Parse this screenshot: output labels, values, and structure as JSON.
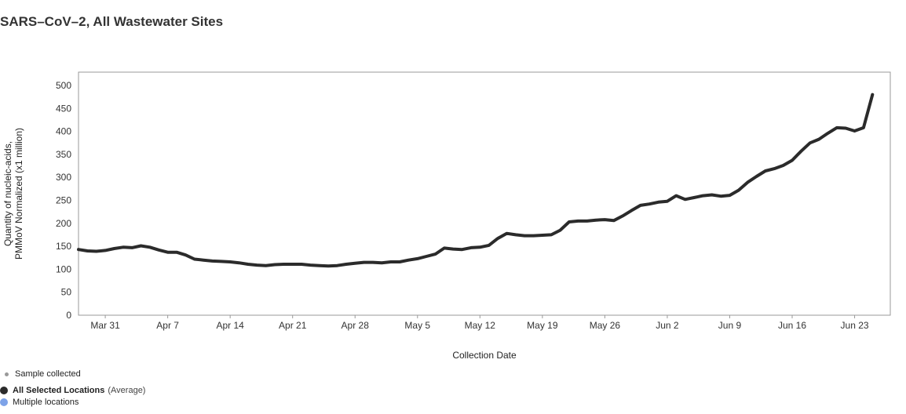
{
  "title": "SARS–CoV–2, All Wastewater Sites",
  "legend": {
    "sample": "Sample collected",
    "all_locations": "All Selected Locations",
    "average": "(Average)",
    "multiple": "Multiple locations"
  },
  "colors": {
    "line": "#2b2b2b",
    "sample_dot": "#999999",
    "all_dot": "#2b2b2b",
    "multiple_dot": "#7ea3e8",
    "frame": "#999999"
  },
  "chart_data": {
    "type": "line",
    "xlabel": "Collection Date",
    "ylabel_lines": [
      "Quantity of nucleic-acids,",
      "PMMoV Normalized (x1 million)"
    ],
    "ylim": [
      0,
      500
    ],
    "yticks": [
      0,
      50,
      100,
      150,
      200,
      250,
      300,
      350,
      400,
      450,
      500
    ],
    "xlim": [
      "2024-03-28",
      "2024-06-27"
    ],
    "xticks": [
      {
        "date": "2024-03-31",
        "label": "Mar 31"
      },
      {
        "date": "2024-04-07",
        "label": "Apr 7"
      },
      {
        "date": "2024-04-14",
        "label": "Apr 14"
      },
      {
        "date": "2024-04-21",
        "label": "Apr 21"
      },
      {
        "date": "2024-04-28",
        "label": "Apr 28"
      },
      {
        "date": "2024-05-05",
        "label": "May 5"
      },
      {
        "date": "2024-05-12",
        "label": "May 12"
      },
      {
        "date": "2024-05-19",
        "label": "May 19"
      },
      {
        "date": "2024-05-26",
        "label": "May 26"
      },
      {
        "date": "2024-06-02",
        "label": "Jun 2"
      },
      {
        "date": "2024-06-09",
        "label": "Jun 9"
      },
      {
        "date": "2024-06-16",
        "label": "Jun 16"
      },
      {
        "date": "2024-06-23",
        "label": "Jun 23"
      }
    ],
    "grid": false,
    "series": [
      {
        "color": "#2b2b2b",
        "points": [
          [
            "2024-03-28",
            143
          ],
          [
            "2024-03-29",
            140
          ],
          [
            "2024-03-30",
            139
          ],
          [
            "2024-03-31",
            141
          ],
          [
            "2024-04-01",
            145
          ],
          [
            "2024-04-02",
            148
          ],
          [
            "2024-04-03",
            147
          ],
          [
            "2024-04-04",
            151
          ],
          [
            "2024-04-05",
            148
          ],
          [
            "2024-04-06",
            142
          ],
          [
            "2024-04-07",
            137
          ],
          [
            "2024-04-08",
            137
          ],
          [
            "2024-04-09",
            131
          ],
          [
            "2024-04-10",
            122
          ],
          [
            "2024-04-11",
            120
          ],
          [
            "2024-04-12",
            118
          ],
          [
            "2024-04-13",
            117
          ],
          [
            "2024-04-14",
            116
          ],
          [
            "2024-04-15",
            114
          ],
          [
            "2024-04-16",
            111
          ],
          [
            "2024-04-17",
            109
          ],
          [
            "2024-04-18",
            108
          ],
          [
            "2024-04-19",
            110
          ],
          [
            "2024-04-20",
            111
          ],
          [
            "2024-04-21",
            111
          ],
          [
            "2024-04-22",
            111
          ],
          [
            "2024-04-23",
            109
          ],
          [
            "2024-04-24",
            108
          ],
          [
            "2024-04-25",
            107
          ],
          [
            "2024-04-26",
            108
          ],
          [
            "2024-04-27",
            111
          ],
          [
            "2024-04-28",
            113
          ],
          [
            "2024-04-29",
            115
          ],
          [
            "2024-04-30",
            115
          ],
          [
            "2024-05-01",
            114
          ],
          [
            "2024-05-02",
            116
          ],
          [
            "2024-05-03",
            116
          ],
          [
            "2024-05-04",
            120
          ],
          [
            "2024-05-05",
            123
          ],
          [
            "2024-05-06",
            128
          ],
          [
            "2024-05-07",
            133
          ],
          [
            "2024-05-08",
            146
          ],
          [
            "2024-05-09",
            144
          ],
          [
            "2024-05-10",
            143
          ],
          [
            "2024-05-11",
            147
          ],
          [
            "2024-05-12",
            148
          ],
          [
            "2024-05-13",
            152
          ],
          [
            "2024-05-14",
            167
          ],
          [
            "2024-05-15",
            178
          ],
          [
            "2024-05-16",
            175
          ],
          [
            "2024-05-17",
            173
          ],
          [
            "2024-05-18",
            173
          ],
          [
            "2024-05-19",
            174
          ],
          [
            "2024-05-20",
            175
          ],
          [
            "2024-05-21",
            185
          ],
          [
            "2024-05-22",
            203
          ],
          [
            "2024-05-23",
            205
          ],
          [
            "2024-05-24",
            205
          ],
          [
            "2024-05-25",
            207
          ],
          [
            "2024-05-26",
            208
          ],
          [
            "2024-05-27",
            206
          ],
          [
            "2024-05-28",
            216
          ],
          [
            "2024-05-29",
            228
          ],
          [
            "2024-05-30",
            239
          ],
          [
            "2024-05-31",
            242
          ],
          [
            "2024-06-01",
            246
          ],
          [
            "2024-06-02",
            248
          ],
          [
            "2024-06-03",
            260
          ],
          [
            "2024-06-04",
            252
          ],
          [
            "2024-06-05",
            256
          ],
          [
            "2024-06-06",
            260
          ],
          [
            "2024-06-07",
            262
          ],
          [
            "2024-06-08",
            259
          ],
          [
            "2024-06-09",
            261
          ],
          [
            "2024-06-10",
            272
          ],
          [
            "2024-06-11",
            289
          ],
          [
            "2024-06-12",
            302
          ],
          [
            "2024-06-13",
            314
          ],
          [
            "2024-06-14",
            319
          ],
          [
            "2024-06-15",
            326
          ],
          [
            "2024-06-16",
            337
          ],
          [
            "2024-06-17",
            357
          ],
          [
            "2024-06-18",
            375
          ],
          [
            "2024-06-19",
            383
          ],
          [
            "2024-06-20",
            396
          ],
          [
            "2024-06-21",
            408
          ],
          [
            "2024-06-22",
            407
          ],
          [
            "2024-06-23",
            401
          ],
          [
            "2024-06-24",
            408
          ],
          [
            "2024-06-25",
            480
          ]
        ]
      }
    ]
  }
}
